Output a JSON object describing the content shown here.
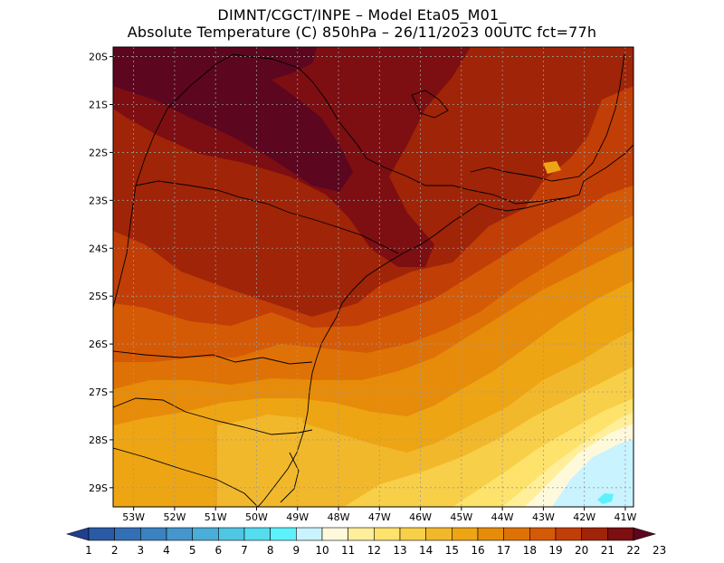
{
  "title": {
    "line1": "DIMNT/CGCT/INPE  –   Model Eta05_M01_",
    "line2": "Absolute Temperature (C) 850hPa  –   26/11/2023 00UTC fct=77h"
  },
  "map": {
    "lat_labels": [
      "20S",
      "21S",
      "22S",
      "23S",
      "24S",
      "25S",
      "26S",
      "27S",
      "28S",
      "29S"
    ],
    "lon_labels": [
      "53W",
      "52W",
      "51W",
      "50W",
      "49W",
      "48W",
      "47W",
      "46W",
      "45W",
      "44W",
      "43W",
      "42W",
      "41W"
    ],
    "lat_values": [
      -20,
      -21,
      -22,
      -23,
      -24,
      -25,
      -26,
      -27,
      -28,
      -29
    ],
    "lon_values": [
      -53,
      -52,
      -51,
      -50,
      -49,
      -48,
      -47,
      -46,
      -45,
      -44,
      -43,
      -42,
      -41
    ],
    "lat_range": [
      -29.4,
      -19.8
    ],
    "lon_range": [
      -53.5,
      -40.8
    ]
  },
  "colorbar": {
    "labels": [
      "1",
      "2",
      "3",
      "4",
      "5",
      "6",
      "7",
      "8",
      "9",
      "10",
      "11",
      "12",
      "13",
      "14",
      "15",
      "16",
      "17",
      "18",
      "19",
      "20",
      "21",
      "22",
      "23"
    ],
    "colors": [
      "#1f3f8f",
      "#2a5aa6",
      "#336fb5",
      "#3a82c0",
      "#4596cd",
      "#4aaed8",
      "#4fc6e3",
      "#55dcef",
      "#5cf2fb",
      "#c9f3ff",
      "#fff9dc",
      "#ffee9a",
      "#fde26c",
      "#f8cf48",
      "#f2b82c",
      "#eea514",
      "#e68c0a",
      "#df7206",
      "#d55a06",
      "#c23e07",
      "#a02408",
      "#7d0e12",
      "#5c0620"
    ]
  },
  "colors": {
    "coast": "#000000",
    "grid": "#9a9a9a"
  }
}
